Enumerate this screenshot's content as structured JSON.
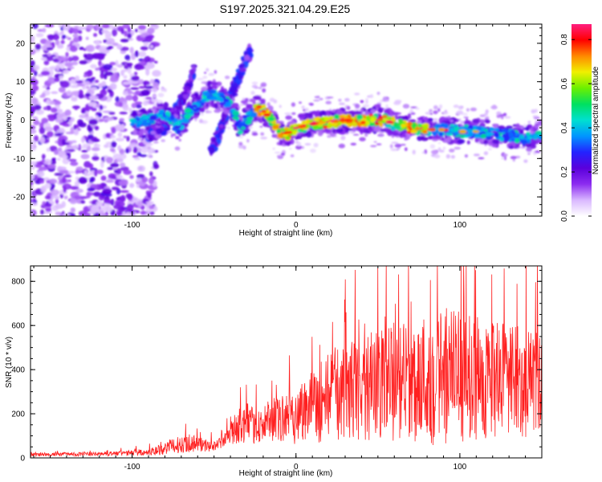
{
  "title": "S197.2025.321.04.29.E25",
  "chart_data": [
    {
      "type": "heatmap",
      "name": "spectrogram",
      "xlabel": "Height of straight line (km)",
      "ylabel": "Frequency (Hz)",
      "xlim": [
        -162,
        150
      ],
      "ylim": [
        -25,
        25
      ],
      "xticks": [
        -100,
        0,
        100
      ],
      "yticks": [
        -20,
        -10,
        0,
        10,
        20
      ],
      "colorbar": {
        "label": "Normalized spectral amplitude",
        "range": [
          0,
          0.87
        ],
        "ticks": [
          0.0,
          0.2,
          0.4,
          0.6,
          0.8
        ],
        "colormap": [
          "#ffffff",
          "#d9b8ff",
          "#8c2cf0",
          "#5a00dc",
          "#2323ff",
          "#0096ff",
          "#00e0d0",
          "#00e060",
          "#6cf000",
          "#f0f000",
          "#ff8a00",
          "#ff0000",
          "#ff1f80"
        ]
      },
      "ridge_track": {
        "x": [
          -100,
          -90,
          -80,
          -72,
          -65,
          -58,
          -52,
          -47,
          -42,
          -38,
          -34,
          -30,
          -25,
          -20,
          -15,
          -10,
          -5,
          0,
          10,
          20,
          30,
          40,
          50,
          55,
          60,
          70,
          80,
          90,
          100,
          110,
          120,
          130,
          140,
          150
        ],
        "y": [
          -1,
          0,
          1.5,
          -2,
          2,
          5,
          7,
          6,
          5,
          2,
          -2,
          0,
          3,
          2.5,
          0,
          -3,
          -3.5,
          -2,
          -1,
          -0.5,
          0,
          0,
          0,
          0,
          -1,
          -2,
          -2.5,
          -2.5,
          -3,
          -3,
          -3.5,
          -4,
          -4.5,
          -3.5
        ]
      },
      "secondary_tracks": [
        {
          "x": [
            -90,
            -80,
            -72,
            -66,
            -62
          ],
          "y": [
            -4,
            -2,
            3,
            8,
            13
          ]
        },
        {
          "x": [
            -52,
            -46,
            -40,
            -34,
            -28
          ],
          "y": [
            -8,
            -3,
            6,
            12,
            18
          ]
        }
      ],
      "noise_region_x": [
        -162,
        -95
      ]
    },
    {
      "type": "line",
      "name": "snr",
      "xlabel": "Height of straight line (km)",
      "ylabel": "SNR (10 * v/v)",
      "xlim": [
        -162,
        150
      ],
      "ylim": [
        0,
        870
      ],
      "xticks": [
        -100,
        0,
        100
      ],
      "yticks": [
        0,
        200,
        400,
        600,
        800
      ],
      "series": [
        {
          "name": "SNR",
          "color": "#ff2020"
        }
      ],
      "envelope": {
        "x": [
          -162,
          -120,
          -90,
          -80,
          -65,
          -58,
          -50,
          -42,
          -35,
          -30,
          -25,
          -20,
          -15,
          -10,
          -5,
          0,
          10,
          20,
          30,
          40,
          50,
          60,
          70,
          80,
          90,
          100,
          110,
          120,
          130,
          140,
          150
        ],
        "mean": [
          15,
          18,
          25,
          45,
          70,
          60,
          50,
          90,
          150,
          160,
          140,
          150,
          160,
          175,
          185,
          195,
          240,
          280,
          300,
          320,
          330,
          340,
          350,
          360,
          370,
          370,
          360,
          355,
          345,
          340,
          340
        ],
        "amp": [
          12,
          13,
          20,
          45,
          60,
          50,
          30,
          50,
          120,
          130,
          110,
          120,
          130,
          150,
          170,
          190,
          250,
          300,
          320,
          340,
          360,
          380,
          400,
          440,
          470,
          430,
          400,
          380,
          370,
          360,
          360
        ]
      }
    }
  ]
}
